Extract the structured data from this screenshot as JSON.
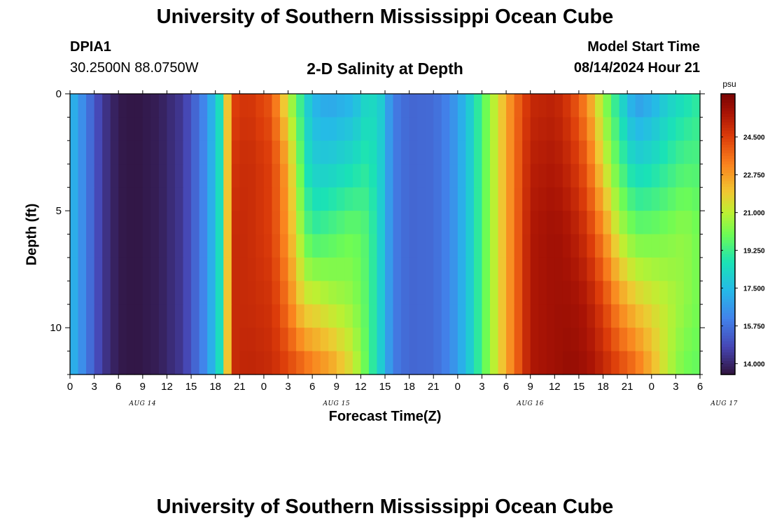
{
  "header": {
    "title": "University of Southern Mississippi Ocean Cube",
    "station_id": "DPIA1",
    "coords": "30.2500N  88.0750W",
    "plot_title": "2-D Salinity at Depth",
    "start_label": "Model Start Time",
    "start_value": "08/14/2024 Hour 21"
  },
  "footer": {
    "title": "University of Southern Mississippi Ocean Cube"
  },
  "chart_data": {
    "type": "heatmap",
    "title": "2-D Salinity at Depth",
    "xlabel": "Forecast Time(Z)",
    "ylabel": "Depth (ft)",
    "x_tick_labels": [
      "0",
      "3",
      "6",
      "9",
      "12",
      "15",
      "18",
      "21",
      "0",
      "3",
      "6",
      "9",
      "12",
      "15",
      "18",
      "21",
      "0",
      "3",
      "6",
      "9",
      "12",
      "15",
      "18",
      "21",
      "0",
      "3",
      "6"
    ],
    "x_date_labels": [
      {
        "label": "AUG 14",
        "hour": 9
      },
      {
        "label": "AUG 15",
        "hour": 33
      },
      {
        "label": "AUG 16",
        "hour": 57
      },
      {
        "label": "AUG 17",
        "hour": 81
      }
    ],
    "xlim_hours": [
      0,
      78
    ],
    "ylim_ft": [
      0,
      12
    ],
    "y_ticks": [
      0,
      5,
      10
    ],
    "colorbar": {
      "unit": "psu",
      "range": [
        13.5,
        26.5
      ],
      "tick_values": [
        14.0,
        15.75,
        17.5,
        19.25,
        21.0,
        22.75,
        24.5
      ],
      "tick_labels": [
        "14.000",
        "15.750",
        "17.500",
        "19.250",
        "21.000",
        "22.750",
        "24.500"
      ]
    },
    "depth_levels_ft": [
      0,
      3,
      6,
      9,
      12
    ],
    "time_hours": [
      0,
      4,
      6,
      8,
      11,
      14,
      17,
      18.5,
      19.5,
      20.5,
      22,
      25,
      27,
      29,
      30,
      32,
      35,
      37,
      38.5,
      40,
      42,
      45,
      47,
      49,
      51,
      53,
      55,
      57,
      60,
      62,
      64,
      66,
      68,
      70,
      72,
      74,
      76,
      78
    ],
    "salinity_psu": [
      [
        17.5,
        14.5,
        13.7,
        13.6,
        13.8,
        14.5,
        16.5,
        18.5,
        22.0,
        24.5,
        24.8,
        24.0,
        21.0,
        18.5,
        17.3,
        16.8,
        17.2,
        18.5,
        18.0,
        16.0,
        15.5,
        15.6,
        16.2,
        17.5,
        19.5,
        21.5,
        23.5,
        25.0,
        25.2,
        24.5,
        23.0,
        20.5,
        18.5,
        16.5,
        17.0,
        18.0,
        18.5,
        19.0
      ],
      [
        17.5,
        14.5,
        13.7,
        13.6,
        13.8,
        14.5,
        16.5,
        18.5,
        22.0,
        24.8,
        25.0,
        24.5,
        22.5,
        19.0,
        18.0,
        18.0,
        18.5,
        19.0,
        18.0,
        16.0,
        15.5,
        15.6,
        16.2,
        17.5,
        19.5,
        21.5,
        23.5,
        25.3,
        25.5,
        25.0,
        24.0,
        21.5,
        19.5,
        18.2,
        18.5,
        19.0,
        19.5,
        19.5
      ],
      [
        17.5,
        14.5,
        13.7,
        13.6,
        13.8,
        14.5,
        16.5,
        18.5,
        22.0,
        25.0,
        25.0,
        24.5,
        22.8,
        20.0,
        19.2,
        19.5,
        20.0,
        19.5,
        18.0,
        16.0,
        15.5,
        15.6,
        16.2,
        17.5,
        19.5,
        21.5,
        23.5,
        25.5,
        25.8,
        25.5,
        24.8,
        23.2,
        21.0,
        20.0,
        20.0,
        20.2,
        20.5,
        20.0
      ],
      [
        17.5,
        14.5,
        13.7,
        13.6,
        13.8,
        14.5,
        16.5,
        18.5,
        22.0,
        25.0,
        25.0,
        24.8,
        23.5,
        21.5,
        21.5,
        21.0,
        20.5,
        19.5,
        18.0,
        16.0,
        15.5,
        15.6,
        16.2,
        17.5,
        19.5,
        21.5,
        23.5,
        25.5,
        25.8,
        25.8,
        25.5,
        24.5,
        23.0,
        22.0,
        21.5,
        21.0,
        20.5,
        20.0
      ],
      [
        17.5,
        14.5,
        13.7,
        13.6,
        13.8,
        14.5,
        16.5,
        18.5,
        22.0,
        25.0,
        25.2,
        25.0,
        24.5,
        24.0,
        23.5,
        23.0,
        21.5,
        19.5,
        18.0,
        16.0,
        15.5,
        15.6,
        16.2,
        17.5,
        19.5,
        21.5,
        23.5,
        25.5,
        25.8,
        26.0,
        25.8,
        25.2,
        24.5,
        23.8,
        22.5,
        21.0,
        20.0,
        19.8
      ]
    ]
  }
}
